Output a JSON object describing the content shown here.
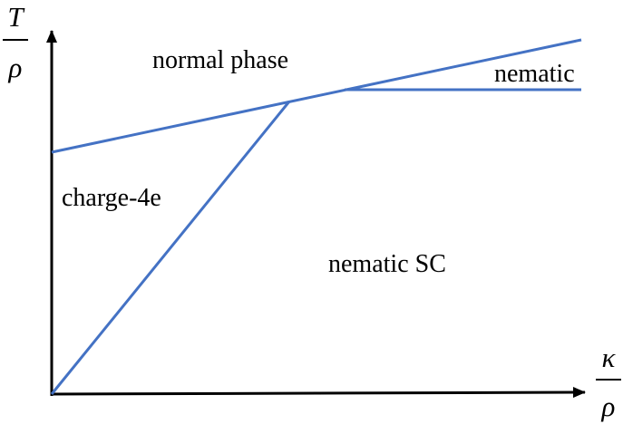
{
  "diagram": {
    "type": "phase-diagram",
    "colors": {
      "boundary": "#4472c4",
      "axis": "#000000",
      "text": "#000000"
    },
    "y_axis": {
      "numerator": "T",
      "denominator": "ρ"
    },
    "x_axis": {
      "numerator": "κ",
      "denominator": "ρ"
    },
    "regions": {
      "normal": "normal phase",
      "nematic": "nematic",
      "charge4e": "charge-4e",
      "nematic_sc": "nematic SC"
    }
  }
}
